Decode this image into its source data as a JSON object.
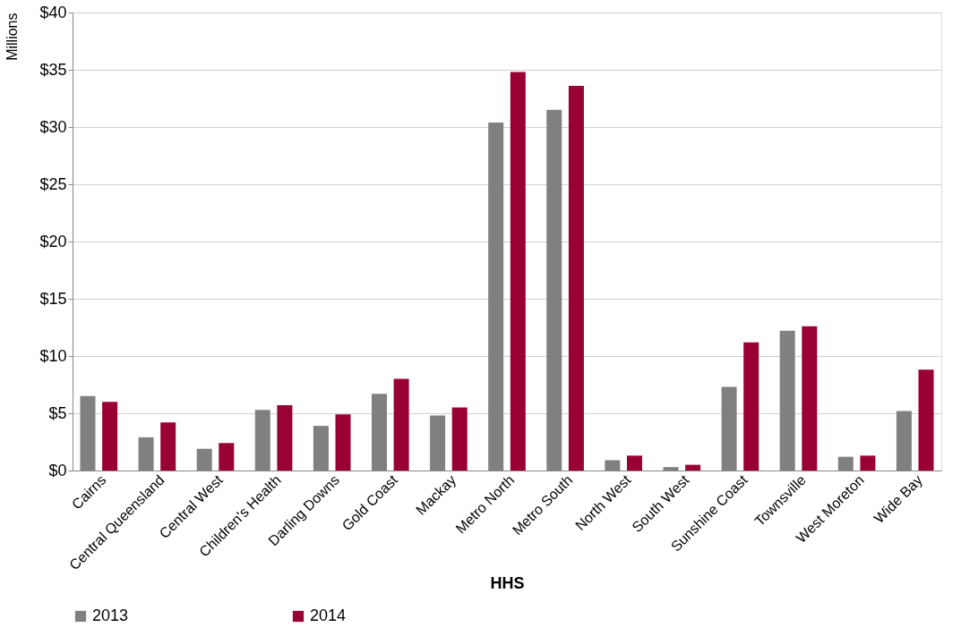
{
  "chart_data": {
    "type": "bar",
    "xlabel": "HHS",
    "ylabel": "Millions",
    "categories": [
      "Cairns",
      "Central Queensland",
      "Central West",
      "Children's Health",
      "Darling Downs",
      "Gold Coast",
      "Mackay",
      "Metro North",
      "Metro South",
      "North West",
      "South West",
      "Sunshine Coast",
      "Townsville",
      "West Moreton",
      "Wide Bay"
    ],
    "series": [
      {
        "name": "2013",
        "color": "#808080",
        "values": [
          6.5,
          2.9,
          1.9,
          5.3,
          3.9,
          6.7,
          4.8,
          30.4,
          31.5,
          0.9,
          0.3,
          7.3,
          12.2,
          1.2,
          5.2
        ]
      },
      {
        "name": "2014",
        "color": "#990033",
        "values": [
          6.0,
          4.2,
          2.4,
          5.7,
          4.9,
          8.0,
          5.5,
          34.8,
          33.6,
          1.3,
          0.5,
          11.2,
          12.6,
          1.3,
          8.8
        ]
      }
    ],
    "ylim": [
      0,
      40
    ],
    "yticks": [
      {
        "value": 0,
        "label": "$0"
      },
      {
        "value": 5,
        "label": "$5"
      },
      {
        "value": 10,
        "label": "$10"
      },
      {
        "value": 15,
        "label": "$15"
      },
      {
        "value": 20,
        "label": "$20"
      },
      {
        "value": 25,
        "label": "$25"
      },
      {
        "value": 30,
        "label": "$30"
      },
      {
        "value": 35,
        "label": "$35"
      },
      {
        "value": 40,
        "label": "$40"
      }
    ],
    "grid": "y",
    "legend": "bottom"
  }
}
